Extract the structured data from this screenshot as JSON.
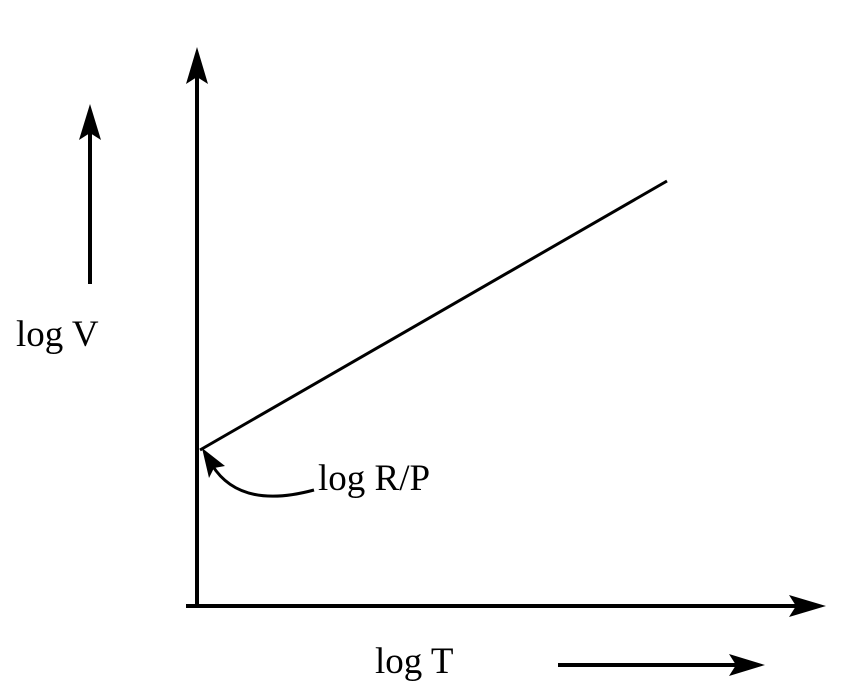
{
  "diagram": {
    "y_axis_label": "log V",
    "x_axis_label": "log T",
    "intercept_label": "log R/P",
    "line_color": "#000000",
    "background_color": "#ffffff"
  }
}
